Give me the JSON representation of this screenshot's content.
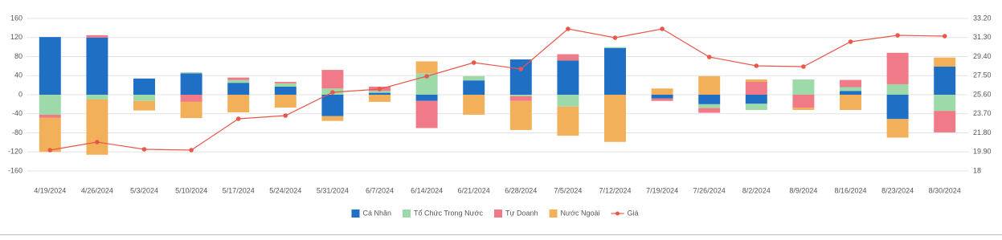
{
  "chart_data": {
    "type": "bar",
    "stacked": true,
    "categories": [
      "4/19/2024",
      "4/26/2024",
      "5/3/2024",
      "5/10/2024",
      "5/17/2024",
      "5/24/2024",
      "5/31/2024",
      "6/7/2024",
      "6/14/2024",
      "6/21/2024",
      "6/28/2024",
      "7/5/2024",
      "7/12/2024",
      "7/19/2024",
      "7/26/2024",
      "8/2/2024",
      "8/9/2024",
      "8/16/2024",
      "8/23/2024",
      "8/30/2024"
    ],
    "series": [
      {
        "name": "Cá Nhân",
        "color": "#1f6fc5",
        "values": [
          121,
          120,
          34,
          45,
          25,
          17,
          -45,
          4,
          -13,
          30,
          74,
          72,
          98,
          -8,
          -20,
          -19,
          0,
          8,
          -51,
          59
        ]
      },
      {
        "name": "Tổ Chức Trong Nước",
        "color": "#9dd9a9",
        "values": [
          -42,
          -10,
          -13,
          2,
          6,
          7,
          13,
          4,
          45,
          9,
          -3,
          -25,
          2,
          0,
          -8,
          -13,
          32,
          8,
          22,
          -34
        ]
      },
      {
        "name": "Tự Doanh",
        "color": "#f07a87",
        "values": [
          -6,
          5,
          0,
          -15,
          5,
          3,
          39,
          9,
          -57,
          0,
          -10,
          13,
          0,
          -5,
          -10,
          27,
          -27,
          15,
          66,
          -45
        ]
      },
      {
        "name": "Nước Ngoài",
        "color": "#f2b05a",
        "values": [
          -72,
          -116,
          -20,
          -34,
          -37,
          -27,
          -10,
          -15,
          25,
          -42,
          -61,
          -61,
          -99,
          13,
          39,
          5,
          -5,
          -32,
          -39,
          19
        ]
      },
      {
        "name": "Giá",
        "color": "#e8574a",
        "type": "line",
        "axis": "y2",
        "values": [
          20.08,
          20.88,
          20.16,
          20.08,
          23.2,
          23.52,
          25.84,
          26.16,
          27.44,
          28.8,
          28.16,
          32.16,
          31.28,
          32.16,
          29.36,
          28.48,
          28.4,
          30.88,
          31.52,
          31.44
        ]
      }
    ],
    "ylim": [
      -160,
      160
    ],
    "yticks": [
      -160,
      -120,
      -80,
      -40,
      0,
      40,
      80,
      120,
      160
    ],
    "y2lim": [
      18,
      33.2
    ],
    "y2ticks": [
      18,
      {
        "value": 19.9,
        "label": "19.90"
      },
      {
        "value": 21.8,
        "label": "21.80"
      },
      {
        "value": 23.7,
        "label": "23.70"
      },
      {
        "value": 25.6,
        "label": "25.60"
      },
      {
        "value": 27.5,
        "label": "27.50"
      },
      {
        "value": 29.4,
        "label": "29.40"
      },
      {
        "value": 31.3,
        "label": "31.30"
      },
      {
        "value": 33.2,
        "label": "33.20"
      }
    ],
    "grid": true,
    "legend": "bottom"
  }
}
